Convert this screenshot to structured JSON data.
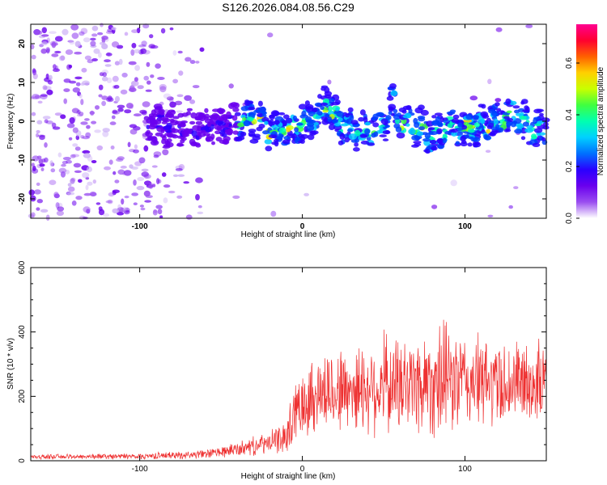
{
  "title": "S126.2026.084.08.56.C29",
  "chart_data": [
    {
      "type": "heatmap",
      "xlabel": "Height of straight line (km)",
      "ylabel": "Frequency (Hz)",
      "xlim": [
        -167,
        150
      ],
      "ylim": [
        -25,
        25
      ],
      "xticks": [
        -100,
        0,
        100
      ],
      "yticks": [
        -20,
        -10,
        0,
        10,
        20
      ],
      "xtick_labels": [
        "-100",
        "0",
        "100"
      ],
      "ytick_labels": [
        "-20",
        "-10",
        "0",
        "10",
        "20"
      ],
      "colorbar": {
        "label": "Normalized spectral amplitude",
        "range": [
          0,
          0.75
        ],
        "ticks": [
          0.0,
          0.2,
          0.4,
          0.6
        ],
        "tick_labels": [
          "0.0",
          "0.2",
          "0.4",
          "0.6"
        ],
        "colormap": [
          "#ffffff",
          "#ccb0f6",
          "#9a4ef0",
          "#6a00ee",
          "#2a00ff",
          "#0040ff",
          "#00c8ff",
          "#00ffb0",
          "#40ff40",
          "#c8ff00",
          "#ffd000",
          "#ff6000",
          "#ff0030",
          "#ff0090"
        ]
      },
      "ridge": {
        "x": [
          -90,
          -70,
          -50,
          -40,
          -30,
          -20,
          -10,
          0,
          10,
          15,
          20,
          30,
          40,
          50,
          55,
          60,
          70,
          80,
          90,
          100,
          110,
          120,
          130,
          140,
          150
        ],
        "freq": [
          -1,
          -2,
          -1,
          0,
          1,
          -3,
          -2,
          -1,
          2,
          5,
          1,
          -2,
          -3,
          -1,
          5,
          0,
          -1,
          -4,
          -1,
          -2,
          -1,
          0,
          2,
          -2,
          -3
        ]
      }
    },
    {
      "type": "line",
      "xlabel": "Height of straight line (km)",
      "ylabel": "SNR (10 * v/v)",
      "xlim": [
        -167,
        150
      ],
      "ylim": [
        0,
        600
      ],
      "xticks": [
        -100,
        0,
        100
      ],
      "yticks": [
        0,
        200,
        400,
        600
      ],
      "xtick_labels": [
        "-100",
        "0",
        "100"
      ],
      "ytick_labels": [
        "0",
        "200",
        "400",
        "600"
      ],
      "line_color": "#ee3030",
      "envelope": {
        "x": [
          -167,
          -100,
          -60,
          -40,
          -20,
          -10,
          -5,
          0,
          10,
          30,
          50,
          70,
          85,
          100,
          120,
          150
        ],
        "mean": [
          12,
          14,
          20,
          35,
          55,
          75,
          140,
          190,
          210,
          225,
          230,
          240,
          250,
          245,
          240,
          240
        ],
        "spread": [
          6,
          8,
          12,
          20,
          30,
          45,
          80,
          100,
          110,
          120,
          130,
          140,
          160,
          130,
          120,
          110
        ]
      }
    }
  ]
}
